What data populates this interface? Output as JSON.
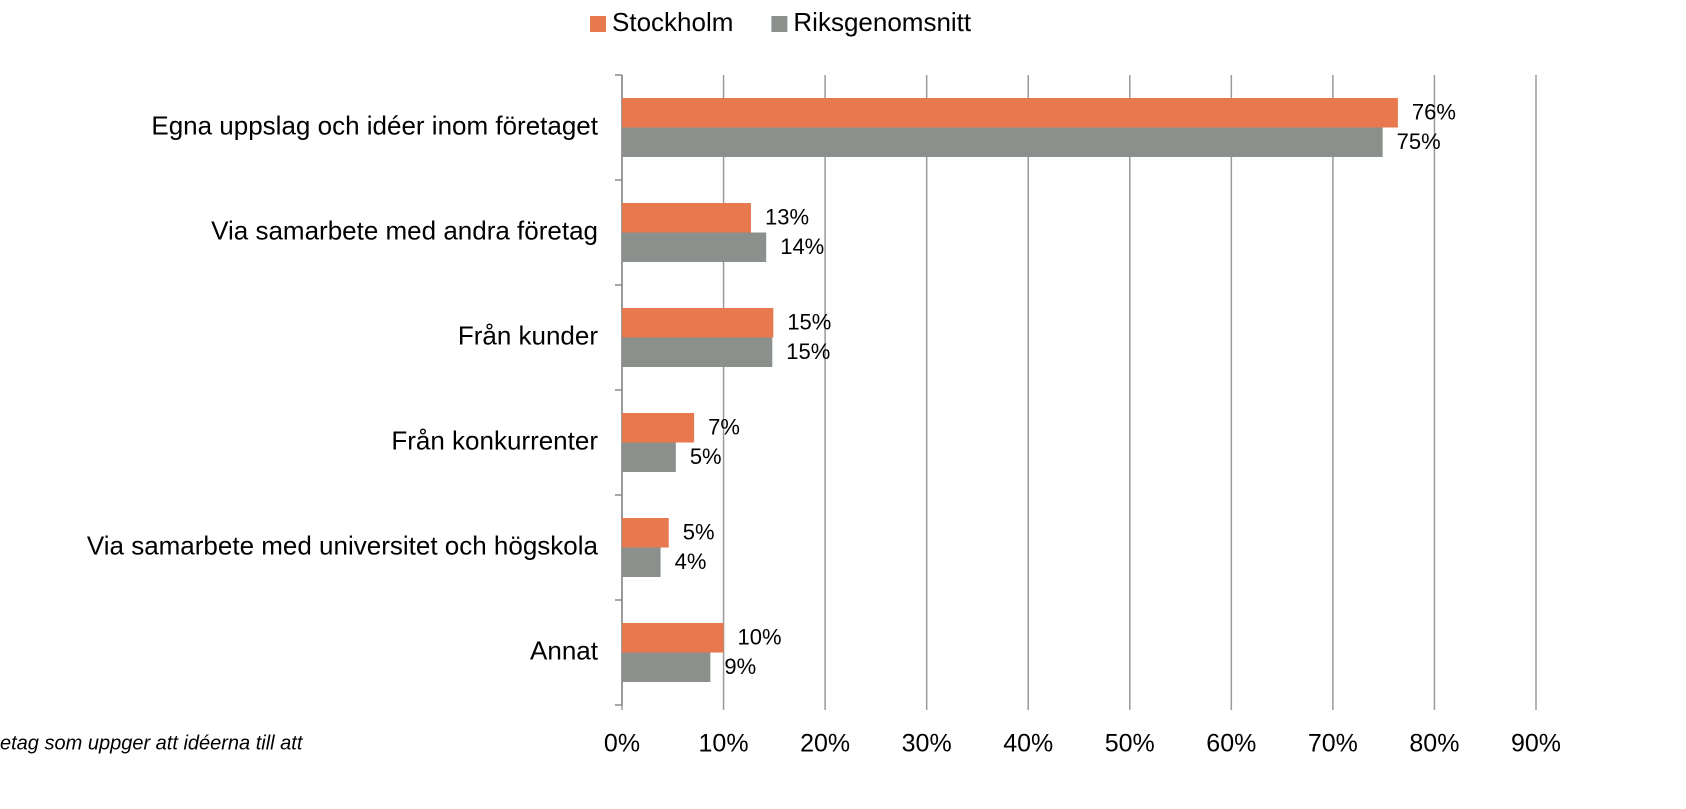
{
  "chart_data": {
    "type": "barh",
    "categories": [
      "Egna uppslag och idéer inom företaget",
      "Via samarbete med andra företag",
      "Från kunder",
      "Från konkurrenter",
      "Via samarbete med universitet och högskola",
      "Annat"
    ],
    "series": [
      {
        "name": "Stockholm",
        "color": "#e8794f",
        "values": [
          76.4,
          12.7,
          14.9,
          7.1,
          4.6,
          10.0
        ],
        "value_labels": [
          "76%",
          "13%",
          "15%",
          "7%",
          "5%",
          "10%"
        ]
      },
      {
        "name": "Riksgenomsnitt",
        "color": "#8c908d",
        "values": [
          74.9,
          14.2,
          14.8,
          5.3,
          3.8,
          8.7
        ],
        "value_labels": [
          "75%",
          "14%",
          "15%",
          "5%",
          "4%",
          "9%"
        ]
      }
    ],
    "xlim": [
      0,
      90
    ],
    "xticks": [
      {
        "value": 0,
        "label": "0%"
      },
      {
        "value": 10,
        "label": "10%"
      },
      {
        "value": 20,
        "label": "20%"
      },
      {
        "value": 30,
        "label": "30%"
      },
      {
        "value": 40,
        "label": "40%"
      },
      {
        "value": 50,
        "label": "50%"
      },
      {
        "value": 60,
        "label": "60%"
      },
      {
        "value": 70,
        "label": "70%"
      },
      {
        "value": 80,
        "label": "80%"
      },
      {
        "value": 90,
        "label": "90%"
      }
    ],
    "grid": true,
    "legend": "top",
    "note": "etag som uppger att idéerna till att"
  }
}
